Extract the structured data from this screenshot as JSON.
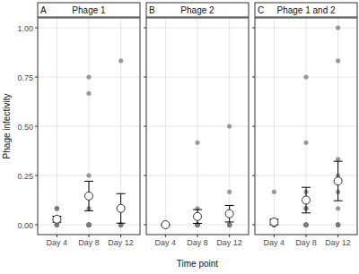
{
  "chart_data": [
    {
      "type": "scatter",
      "label": "A",
      "title": "Phage 1",
      "y_label": "Phage infectivity",
      "categories": [
        "Day 4",
        "Day 8",
        "Day 12"
      ],
      "ylim": [
        -0.05,
        1.05
      ],
      "yticks": [
        {
          "value": 0,
          "label": "0.00"
        },
        {
          "value": 0.25,
          "label": "0.25"
        },
        {
          "value": 0.5,
          "label": "0.50"
        },
        {
          "value": 0.75,
          "label": "0.75"
        },
        {
          "value": 1,
          "label": "1.00"
        }
      ],
      "grid": true,
      "tick_labels": true,
      "series": [
        {
          "type": "scatter",
          "color": "#7a7a7a",
          "marker": "circle",
          "x": [
            "Day 4",
            "Day 4",
            "Day 4",
            "Day 4",
            "Day 4",
            "Day 4",
            "Day 4",
            "Day 4",
            "Day 4",
            "Day 4",
            "Day 4",
            "Day 4",
            "Day 8",
            "Day 8",
            "Day 8",
            "Day 8",
            "Day 8",
            "Day 8",
            "Day 8",
            "Day 8",
            "Day 8",
            "Day 8",
            "Day 8",
            "Day 8",
            "Day 12",
            "Day 12",
            "Day 12",
            "Day 12",
            "Day 12",
            "Day 12",
            "Day 12",
            "Day 12",
            "Day 12",
            "Day 12",
            "Day 12",
            "Day 12"
          ],
          "values": [
            0,
            0,
            0,
            0,
            0,
            0,
            0,
            0,
            0.083,
            0.083,
            0.083,
            0.083,
            0,
            0,
            0,
            0,
            0,
            0,
            0,
            0,
            0.083,
            0.25,
            0.667,
            0.75,
            0,
            0,
            0,
            0,
            0,
            0,
            0,
            0,
            0,
            0.083,
            0.083,
            0.833
          ]
        },
        {
          "type": "point",
          "color": "#ffffff",
          "marker": "circle",
          "values": [
            0.028,
            0.146,
            0.083
          ],
          "error": [
            0.015,
            0.075,
            0.075
          ]
        }
      ]
    },
    {
      "type": "scatter",
      "label": "B",
      "title": "Phage 2",
      "x_label": "Time point",
      "categories": [
        "Day 4",
        "Day 8",
        "Day 12"
      ],
      "ylim": [
        -0.05,
        1.05
      ],
      "yticks": [
        0,
        0.25,
        0.5,
        0.75,
        1
      ],
      "grid": true,
      "tick_labels": "x",
      "series": [
        {
          "type": "scatter",
          "color": "#7a7a7a",
          "marker": "circle",
          "x": [
            "Day 4",
            "Day 4",
            "Day 4",
            "Day 4",
            "Day 4",
            "Day 4",
            "Day 4",
            "Day 4",
            "Day 4",
            "Day 4",
            "Day 4",
            "Day 4",
            "Day 8",
            "Day 8",
            "Day 8",
            "Day 8",
            "Day 8",
            "Day 8",
            "Day 8",
            "Day 8",
            "Day 8",
            "Day 8",
            "Day 8",
            "Day 8",
            "Day 12",
            "Day 12",
            "Day 12",
            "Day 12",
            "Day 12",
            "Day 12",
            "Day 12",
            "Day 12",
            "Day 12",
            "Day 12",
            "Day 12",
            "Day 12"
          ],
          "values": [
            0,
            0,
            0,
            0,
            0,
            0,
            0,
            0,
            0,
            0,
            0,
            0,
            0,
            0,
            0,
            0,
            0,
            0,
            0,
            0,
            0,
            0,
            0.083,
            0.417,
            0,
            0,
            0,
            0,
            0,
            0,
            0,
            0,
            0,
            0,
            0.167,
            0.5
          ]
        },
        {
          "type": "point",
          "color": "#ffffff",
          "marker": "circle",
          "values": [
            0,
            0.042,
            0.056
          ],
          "error": [
            0,
            0.035,
            0.042
          ]
        }
      ]
    },
    {
      "type": "scatter",
      "label": "C",
      "title": "Phage 1 and 2",
      "categories": [
        "Day 4",
        "Day 8",
        "Day 12"
      ],
      "ylim": [
        -0.05,
        1.05
      ],
      "yticks": [
        0,
        0.25,
        0.5,
        0.75,
        1
      ],
      "grid": true,
      "tick_labels": "x",
      "series": [
        {
          "type": "scatter",
          "color": "#7a7a7a",
          "marker": "circle",
          "x": [
            "Day 4",
            "Day 4",
            "Day 4",
            "Day 4",
            "Day 4",
            "Day 4",
            "Day 4",
            "Day 4",
            "Day 4",
            "Day 4",
            "Day 4",
            "Day 4",
            "Day 8",
            "Day 8",
            "Day 8",
            "Day 8",
            "Day 8",
            "Day 8",
            "Day 8",
            "Day 8",
            "Day 8",
            "Day 8",
            "Day 8",
            "Day 8",
            "Day 12",
            "Day 12",
            "Day 12",
            "Day 12",
            "Day 12",
            "Day 12",
            "Day 12",
            "Day 12",
            "Day 12",
            "Day 12",
            "Day 12",
            "Day 12"
          ],
          "values": [
            0,
            0,
            0,
            0,
            0,
            0,
            0,
            0,
            0,
            0,
            0,
            0.167,
            0,
            0,
            0,
            0,
            0,
            0,
            0,
            0.083,
            0.083,
            0.167,
            0.417,
            0.75,
            0,
            0,
            0,
            0,
            0,
            0,
            0.083,
            0.167,
            0.25,
            0.333,
            0.833,
            1.0
          ]
        },
        {
          "type": "point",
          "color": "#ffffff",
          "marker": "circle",
          "values": [
            0.014,
            0.125,
            0.222
          ],
          "error": [
            0.014,
            0.065,
            0.1
          ]
        }
      ]
    }
  ]
}
